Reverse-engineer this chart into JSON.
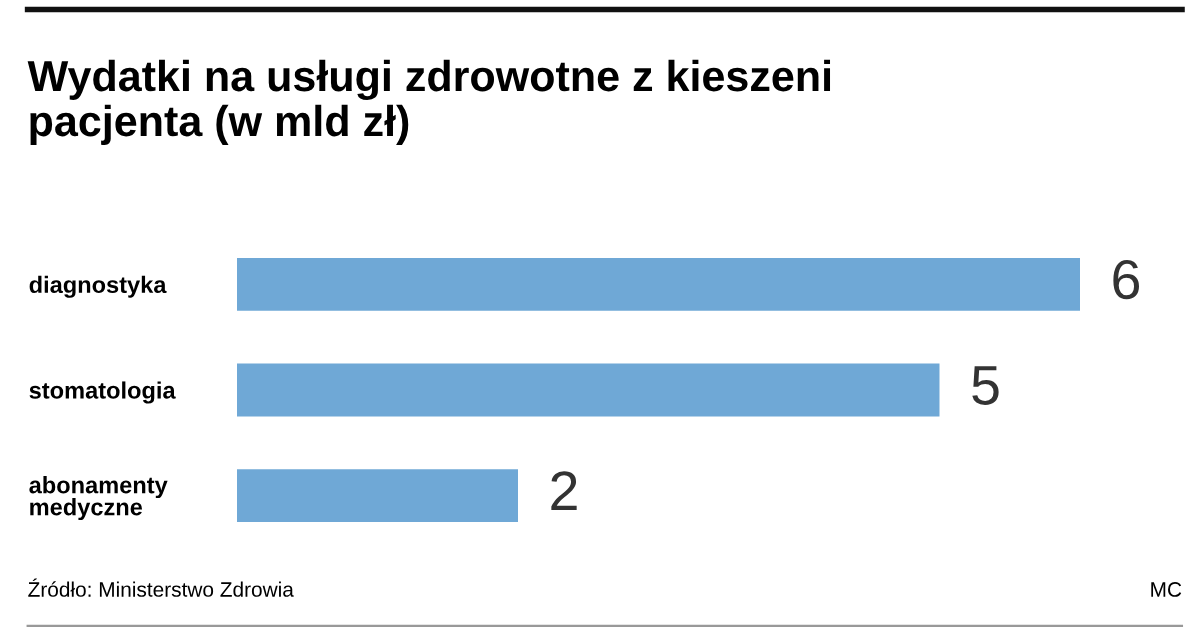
{
  "chart_data": {
    "type": "bar",
    "orientation": "horizontal",
    "title": "Wydatki na usługi zdrowotne z kieszeni\npacjenta (w mld zł)",
    "categories": [
      "diagnostyka",
      "stomatologia",
      "abonamenty\nmedyczne"
    ],
    "values": [
      6,
      5,
      2
    ],
    "color": "#6fa8d6",
    "data_labels": true,
    "grid": false,
    "legend": false,
    "tick_labels": "y",
    "annotations": [
      "Źródło: Ministerstwo Zdrowia",
      "MC"
    ]
  }
}
